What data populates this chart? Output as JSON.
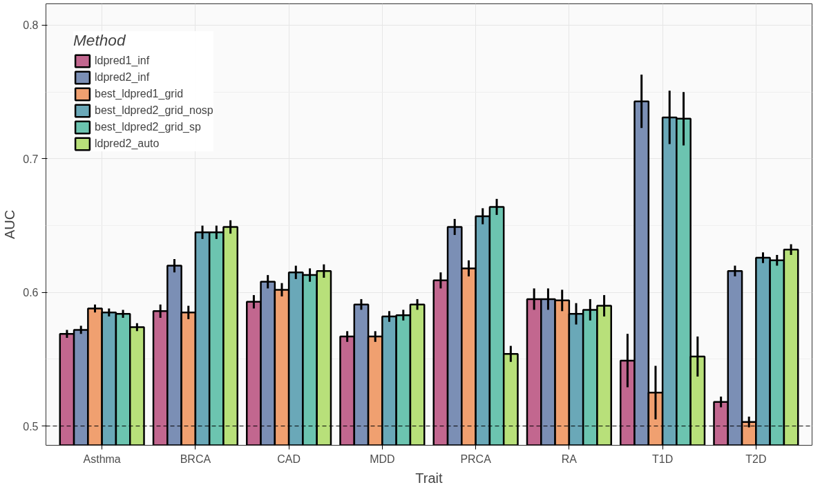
{
  "chart_data": {
    "type": "bar",
    "xlabel": "Trait",
    "ylabel": "AUC",
    "legend_title": "Method",
    "categories": [
      "Asthma",
      "BRCA",
      "CAD",
      "MDD",
      "PRCA",
      "RA",
      "T1D",
      "T2D"
    ],
    "ylim": [
      0.4856,
      0.816
    ],
    "yticks": [
      0.5,
      0.6,
      0.7,
      0.8
    ],
    "grid": true,
    "legend": "top left",
    "ref_lines": [
      {
        "axis": "y",
        "value": 0.5,
        "line_style": "dashed",
        "color": "#000000"
      }
    ],
    "series": [
      {
        "name": "ldpred1_inf",
        "color": "#c2678f",
        "values": [
          0.569,
          0.586,
          0.593,
          0.567,
          0.609,
          0.595,
          0.549,
          0.518
        ],
        "errors": [
          0.003,
          0.005,
          0.005,
          0.004,
          0.006,
          0.008,
          0.02,
          0.004
        ]
      },
      {
        "name": "ldpred2_inf",
        "color": "#7b8fb5",
        "values": [
          0.572,
          0.62,
          0.608,
          0.591,
          0.649,
          0.595,
          0.743,
          0.616
        ],
        "errors": [
          0.003,
          0.005,
          0.005,
          0.004,
          0.006,
          0.008,
          0.02,
          0.004
        ]
      },
      {
        "name": "best_ldpred1_grid",
        "color": "#f0a070",
        "values": [
          0.588,
          0.585,
          0.602,
          0.567,
          0.618,
          0.594,
          0.525,
          0.503
        ],
        "errors": [
          0.003,
          0.005,
          0.005,
          0.004,
          0.006,
          0.008,
          0.02,
          0.004
        ]
      },
      {
        "name": "best_ldpred2_grid_nosp",
        "color": "#6aa8b8",
        "values": [
          0.585,
          0.645,
          0.615,
          0.582,
          0.657,
          0.584,
          0.731,
          0.626
        ],
        "errors": [
          0.003,
          0.005,
          0.005,
          0.004,
          0.006,
          0.008,
          0.02,
          0.004
        ]
      },
      {
        "name": "best_ldpred2_grid_sp",
        "color": "#6cc4b0",
        "values": [
          0.584,
          0.645,
          0.613,
          0.583,
          0.664,
          0.587,
          0.73,
          0.624
        ],
        "errors": [
          0.003,
          0.005,
          0.005,
          0.004,
          0.006,
          0.008,
          0.02,
          0.004
        ]
      },
      {
        "name": "ldpred2_auto",
        "color": "#b8e07a",
        "values": [
          0.574,
          0.649,
          0.616,
          0.591,
          0.554,
          0.59,
          0.552,
          0.632
        ],
        "errors": [
          0.003,
          0.005,
          0.005,
          0.004,
          0.006,
          0.008,
          0.015,
          0.004
        ]
      }
    ]
  }
}
